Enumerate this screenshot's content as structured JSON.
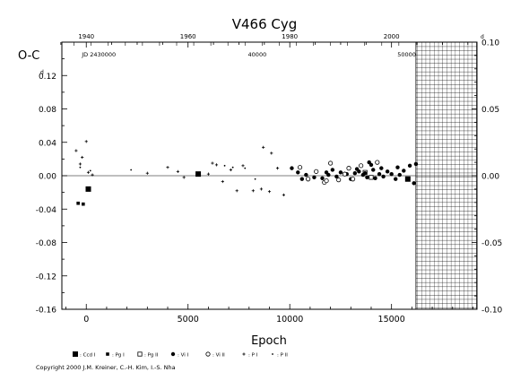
{
  "chart_data": {
    "type": "scatter",
    "title": "V466  Cyg",
    "xlabel": "Epoch",
    "ylabel": "O-C",
    "xlim": [
      -1200,
      19200
    ],
    "ylim": [
      -0.16,
      0.16
    ],
    "y2lim": [
      -0.1,
      0.1
    ],
    "grid": false,
    "legend_position": "bottom",
    "x_ticks": [
      {
        "value": 0,
        "label": "0"
      },
      {
        "value": 5000,
        "label": "5000"
      },
      {
        "value": 10000,
        "label": "10000"
      },
      {
        "value": 15000,
        "label": "15000"
      }
    ],
    "y_ticks": [
      {
        "value": 0.12,
        "label": "0.12"
      },
      {
        "value": 0.08,
        "label": "0.08"
      },
      {
        "value": 0.04,
        "label": "0.04"
      },
      {
        "value": 0.0,
        "label": "0.00"
      },
      {
        "value": -0.04,
        "label": "-0.04"
      },
      {
        "value": -0.08,
        "label": "-0.08"
      },
      {
        "value": -0.12,
        "label": "-0.12"
      },
      {
        "value": -0.16,
        "label": "-0.16"
      }
    ],
    "y_unit_mark": "d",
    "y2_ticks": [
      {
        "value": 0.1,
        "label": "0.10"
      },
      {
        "value": 0.05,
        "label": "0.05"
      },
      {
        "value": 0.0,
        "label": "0.00"
      },
      {
        "value": -0.05,
        "label": "-0.05"
      },
      {
        "value": -0.1,
        "label": "-0.10"
      }
    ],
    "top_year_ticks": [
      {
        "epoch": 0,
        "label": "1940"
      },
      {
        "epoch": 5000,
        "label": "1960"
      },
      {
        "epoch": 10000,
        "label": "1980"
      },
      {
        "epoch": 15000,
        "label": "2000"
      }
    ],
    "jd_ticks": [
      {
        "epoch": 0,
        "label": "JD 2430000"
      },
      {
        "epoch": 8400,
        "label": "40000"
      },
      {
        "epoch": 16200,
        "label": "50000"
      }
    ],
    "hatched_region": {
      "x_from": 16200,
      "x_to": 19200
    },
    "series": [
      {
        "name": "Ccd I",
        "marker": "square-filled",
        "points": [
          [
            100,
            -0.016
          ],
          [
            5500,
            0.002
          ],
          [
            15800,
            -0.004
          ]
        ]
      },
      {
        "name": "Pg I",
        "marker": "square-filled-small",
        "points": [
          [
            -400,
            -0.033
          ],
          [
            -150,
            -0.034
          ]
        ]
      },
      {
        "name": "Pg II",
        "marker": "square-open",
        "points": [
          [
            13700,
            0.004
          ],
          [
            14000,
            -0.002
          ]
        ]
      },
      {
        "name": "Vi I",
        "marker": "dot",
        "points": [
          [
            10100,
            0.009
          ],
          [
            10400,
            0.004
          ],
          [
            10800,
            0.001
          ],
          [
            11200,
            -0.002
          ],
          [
            11600,
            -0.003
          ],
          [
            11900,
            0.001
          ],
          [
            12100,
            0.007
          ],
          [
            12500,
            0.004
          ],
          [
            12800,
            0.002
          ],
          [
            13000,
            -0.004
          ],
          [
            13200,
            0.003
          ],
          [
            13400,
            0.005
          ],
          [
            13600,
            0.001
          ],
          [
            13700,
            0.003
          ],
          [
            13800,
            -0.002
          ],
          [
            14000,
            0.013
          ],
          [
            14100,
            0.007
          ],
          [
            14200,
            -0.003
          ],
          [
            14400,
            0.002
          ],
          [
            14600,
            -0.001
          ],
          [
            14800,
            0.005
          ],
          [
            15000,
            0.002
          ],
          [
            15200,
            -0.004
          ],
          [
            15400,
            0.001
          ],
          [
            15600,
            0.006
          ],
          [
            15900,
            0.012
          ],
          [
            16100,
            -0.009
          ],
          [
            16200,
            0.014
          ],
          [
            10600,
            -0.004
          ],
          [
            11800,
            0.004
          ],
          [
            12300,
            -0.001
          ],
          [
            13300,
            0.008
          ],
          [
            13900,
            0.016
          ],
          [
            14500,
            0.009
          ],
          [
            15300,
            0.01
          ]
        ]
      },
      {
        "name": "Vi II",
        "marker": "circle-open",
        "points": [
          [
            10500,
            0.01
          ],
          [
            10900,
            -0.004
          ],
          [
            11300,
            0.005
          ],
          [
            11700,
            -0.008
          ],
          [
            11800,
            -0.006
          ],
          [
            12000,
            0.015
          ],
          [
            12400,
            -0.005
          ],
          [
            12700,
            0.002
          ],
          [
            13100,
            -0.004
          ],
          [
            13500,
            0.012
          ],
          [
            14300,
            0.016
          ],
          [
            12900,
            0.009
          ]
        ]
      },
      {
        "name": "P I",
        "marker": "plus",
        "points": [
          [
            -500,
            0.03
          ],
          [
            -300,
            0.014
          ],
          [
            -200,
            0.022
          ],
          [
            0,
            0.041
          ],
          [
            100,
            0.004
          ],
          [
            300,
            0.001
          ],
          [
            3000,
            0.003
          ],
          [
            4000,
            0.01
          ],
          [
            4500,
            0.005
          ],
          [
            6200,
            0.015
          ],
          [
            6400,
            0.013
          ],
          [
            6700,
            -0.007
          ],
          [
            7100,
            0.007
          ],
          [
            7400,
            -0.018
          ],
          [
            7700,
            0.012
          ],
          [
            8200,
            -0.018
          ],
          [
            8600,
            -0.016
          ],
          [
            9000,
            -0.019
          ],
          [
            9400,
            0.009
          ],
          [
            9700,
            -0.023
          ],
          [
            8700,
            0.034
          ],
          [
            9100,
            0.027
          ],
          [
            6000,
            0.002
          ],
          [
            4800,
            -0.002
          ]
        ]
      },
      {
        "name": "P II",
        "marker": "dot-small",
        "points": [
          [
            -300,
            0.01
          ],
          [
            200,
            0.006
          ],
          [
            2200,
            0.007
          ],
          [
            6800,
            0.012
          ],
          [
            7200,
            0.01
          ],
          [
            7800,
            0.009
          ],
          [
            8300,
            -0.004
          ]
        ]
      }
    ]
  },
  "copyright": "Copyright 2000 J.M. Kreiner, C.-H. Kim, I.-S. Nha"
}
